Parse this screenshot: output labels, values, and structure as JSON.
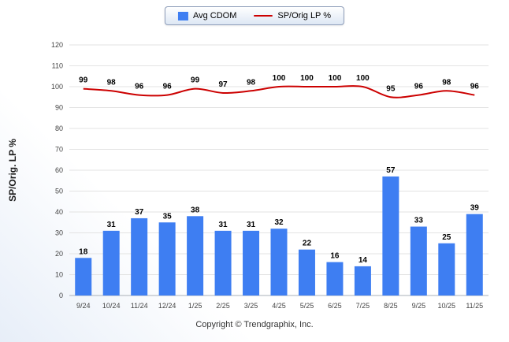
{
  "legend": {
    "items": [
      {
        "label": "Avg CDOM",
        "type": "bar",
        "color": "#3e7ef2"
      },
      {
        "label": "SP/Orig LP %",
        "type": "line",
        "color": "#cc0000"
      }
    ]
  },
  "footer": "Copyright © Trendgraphix, Inc.",
  "chart_data": {
    "type": "bar",
    "subtype": "combo-bar-line",
    "categories": [
      "9/24",
      "10/24",
      "11/24",
      "12/24",
      "1/25",
      "2/25",
      "3/25",
      "4/25",
      "5/25",
      "6/25",
      "7/25",
      "8/25",
      "9/25",
      "10/25",
      "11/25"
    ],
    "series": [
      {
        "name": "Avg CDOM",
        "type": "bar",
        "color": "#3e7ef2",
        "values": [
          18,
          31,
          37,
          35,
          38,
          31,
          31,
          32,
          22,
          16,
          14,
          57,
          33,
          25,
          39
        ]
      },
      {
        "name": "SP/Orig LP %",
        "type": "line",
        "color": "#cc0000",
        "values": [
          99,
          98,
          96,
          96,
          99,
          97,
          98,
          100,
          100,
          100,
          100,
          95,
          96,
          98,
          96
        ]
      }
    ],
    "title": "",
    "xlabel": "",
    "ylabel": "SP/Orig. LP %",
    "ylim": [
      0,
      120
    ],
    "ytick_step": 10,
    "grid": true,
    "legend_position": "top"
  }
}
